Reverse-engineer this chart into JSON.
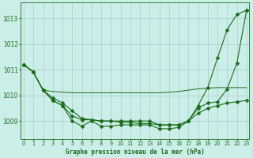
{
  "title": "Graphe pression niveau de la mer (hPa)",
  "bg_color": "#cceee8",
  "grid_color": "#aacccc",
  "line_color": "#1a6b1a",
  "marker_color": "#1a6b1a",
  "x_labels": [
    "0",
    "1",
    "2",
    "3",
    "4",
    "5",
    "6",
    "7",
    "8",
    "9",
    "10",
    "11",
    "12",
    "13",
    "14",
    "15",
    "16",
    "17",
    "18",
    "19",
    "20",
    "21",
    "22",
    "23"
  ],
  "y_ticks": [
    1009,
    1010,
    1011,
    1012,
    1013
  ],
  "ylim": [
    1008.3,
    1013.6
  ],
  "xlim": [
    -0.3,
    23.3
  ],
  "series": [
    {
      "y": [
        1011.2,
        1010.9,
        1010.2,
        1009.8,
        1009.6,
        1009.0,
        1008.8,
        1009.0,
        1008.8,
        1008.8,
        1008.85,
        1008.85,
        1008.85,
        1008.85,
        1008.7,
        1008.7,
        1008.75,
        1009.0,
        1009.6,
        1010.3,
        1011.45,
        1012.55,
        1013.15,
        1013.3
      ],
      "marker": "D",
      "ms": 2.5,
      "lw": 0.8
    },
    {
      "y": [
        1011.2,
        1010.9,
        1010.2,
        1010.15,
        1010.12,
        1010.1,
        1010.1,
        1010.1,
        1010.1,
        1010.1,
        1010.1,
        1010.1,
        1010.1,
        1010.1,
        1010.1,
        1010.12,
        1010.15,
        1010.2,
        1010.25,
        1010.28,
        1010.3,
        1010.3,
        1010.3,
        1010.3
      ],
      "marker": "",
      "ms": 0,
      "lw": 0.7
    },
    {
      "y": [
        1011.2,
        1010.9,
        1010.2,
        1009.9,
        1009.7,
        1009.4,
        1009.1,
        1009.05,
        1009.0,
        1009.0,
        1008.95,
        1008.95,
        1008.9,
        1008.9,
        1008.85,
        1008.85,
        1008.85,
        1009.0,
        1009.3,
        1009.5,
        1009.6,
        1009.7,
        1009.75,
        1009.8
      ],
      "marker": "D",
      "ms": 2.5,
      "lw": 0.8
    },
    {
      "y": [
        1011.2,
        1010.9,
        1010.2,
        1009.8,
        1009.6,
        1009.2,
        1009.05,
        1009.05,
        1009.0,
        1009.0,
        1009.0,
        1009.0,
        1009.0,
        1009.0,
        1008.85,
        1008.85,
        1008.85,
        1009.0,
        1009.5,
        1009.7,
        1009.75,
        1010.25,
        1011.25,
        1013.3
      ],
      "marker": "D",
      "ms": 2.5,
      "lw": 0.8
    }
  ]
}
